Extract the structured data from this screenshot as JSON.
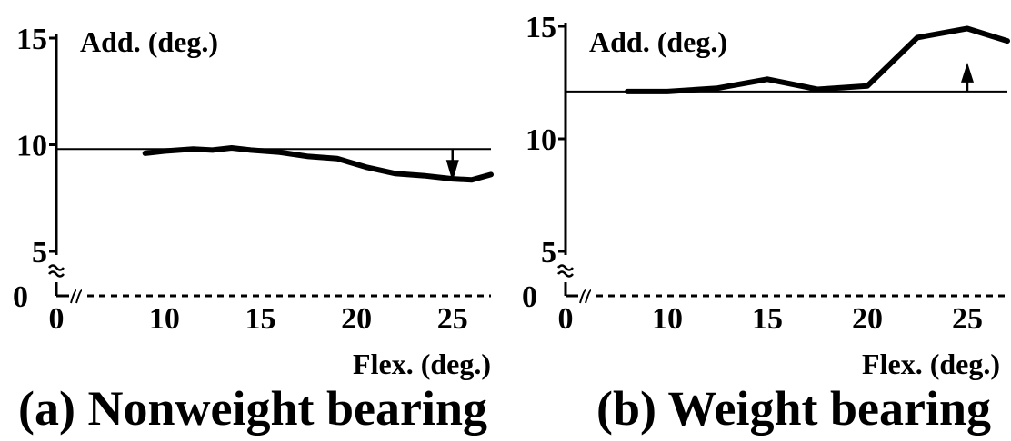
{
  "chart_data": [
    {
      "type": "line",
      "caption": "(a) Nonweight bearing",
      "ylabel": "Add. (deg.)",
      "xlabel": "Flex. (deg.)",
      "xlim": [
        7.5,
        27
      ],
      "ylim": [
        5,
        15
      ],
      "x_origin_label": "0",
      "y_origin_label": "0",
      "x_ticks": [
        10,
        15,
        20,
        25
      ],
      "y_ticks": [
        5,
        10,
        15
      ],
      "reference_level": 9.8,
      "arrow": {
        "x": 25,
        "direction": "down"
      },
      "series": [
        {
          "x": [
            9,
            10,
            11.5,
            12.5,
            13.5,
            14.5,
            16,
            17.5,
            19,
            20.5,
            22,
            23.5,
            25,
            26,
            27
          ],
          "y": [
            9.6,
            9.7,
            9.8,
            9.75,
            9.85,
            9.75,
            9.65,
            9.45,
            9.35,
            8.95,
            8.65,
            8.55,
            8.4,
            8.35,
            8.6
          ]
        }
      ]
    },
    {
      "type": "line",
      "caption": "(b) Weight bearing",
      "ylabel": "Add. (deg.)",
      "xlabel": "Flex. (deg.)",
      "xlim": [
        7,
        27
      ],
      "ylim": [
        5,
        15
      ],
      "x_origin_label": "0",
      "y_origin_label": "0",
      "x_ticks": [
        10,
        15,
        20,
        25
      ],
      "y_ticks": [
        5,
        10,
        15
      ],
      "reference_level": 12.1,
      "arrow": {
        "x": 25,
        "direction": "up"
      },
      "series": [
        {
          "x": [
            8,
            10,
            12.5,
            15,
            17.5,
            20,
            22.5,
            25,
            27
          ],
          "y": [
            12.1,
            12.1,
            12.25,
            12.65,
            12.2,
            12.35,
            14.5,
            14.9,
            14.35
          ]
        }
      ]
    }
  ]
}
